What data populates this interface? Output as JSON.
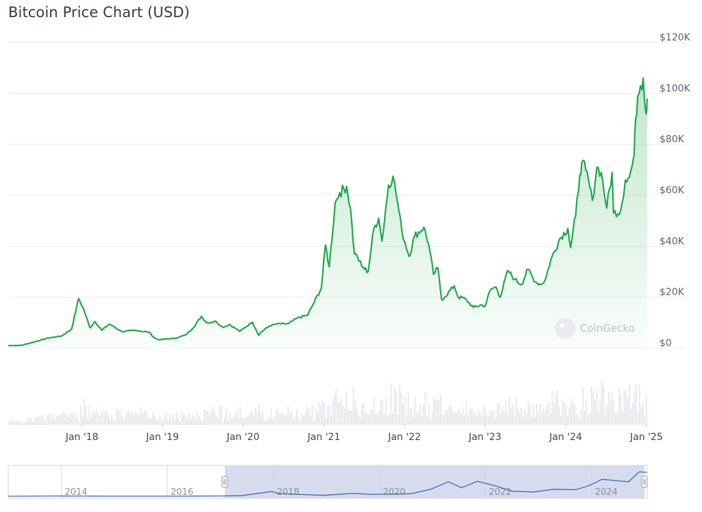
{
  "page": {
    "title": "Bitcoin Price Chart (USD)"
  },
  "watermark": "CoinGecko",
  "colors": {
    "line": "#1ea84b",
    "volume": "#e8eaee",
    "navigator_line": "#3e66b3",
    "navigator_fill": "#d6dcee"
  },
  "chart_data": {
    "type": "area",
    "title": "Bitcoin Price Chart (USD)",
    "xlabel": "",
    "ylabel": "",
    "ylim": [
      0,
      120000
    ],
    "y_ticks": [
      "$0",
      "$20K",
      "$40K",
      "$60K",
      "$80K",
      "$100K",
      "$120K"
    ],
    "y_tick_values": [
      0,
      20000,
      40000,
      60000,
      80000,
      100000,
      120000
    ],
    "x_ticks": [
      "Jan '18",
      "Jan '19",
      "Jan '20",
      "Jan '21",
      "Jan '22",
      "Jan '23",
      "Jan '24",
      "Jan '25"
    ],
    "x_tick_dates": [
      "2018-01-01",
      "2019-01-01",
      "2020-01-01",
      "2021-01-01",
      "2022-01-01",
      "2023-01-01",
      "2024-01-01",
      "2025-01-01"
    ],
    "xlim": [
      "2017-02-01",
      "2025-01-04"
    ],
    "grid": true,
    "legend": "none",
    "series": [
      {
        "x": [
          "2017-02-01",
          "2017-04-01",
          "2017-06-01",
          "2017-08-01",
          "2017-10-01",
          "2017-11-15",
          "2017-12-17",
          "2018-01-10",
          "2018-02-06",
          "2018-03-01",
          "2018-04-01",
          "2018-05-05",
          "2018-07-01",
          "2018-09-01",
          "2018-11-01",
          "2018-11-25",
          "2018-12-15",
          "2019-01-15",
          "2019-03-01",
          "2019-04-15",
          "2019-05-20",
          "2019-06-26",
          "2019-07-20",
          "2019-09-01",
          "2019-09-30",
          "2019-11-01",
          "2019-12-17",
          "2020-02-12",
          "2020-03-12",
          "2020-03-20",
          "2020-05-01",
          "2020-06-01",
          "2020-07-25",
          "2020-09-01",
          "2020-10-20",
          "2020-11-20",
          "2020-12-20",
          "2021-01-08",
          "2021-01-25",
          "2021-02-21",
          "2021-03-13",
          "2021-04-14",
          "2021-05-01",
          "2021-05-19",
          "2021-06-01",
          "2021-06-22",
          "2021-07-20",
          "2021-08-15",
          "2021-09-06",
          "2021-09-21",
          "2021-10-20",
          "2021-11-10",
          "2021-12-01",
          "2021-12-20",
          "2022-01-22",
          "2022-02-15",
          "2022-03-29",
          "2022-04-20",
          "2022-05-12",
          "2022-06-01",
          "2022-06-18",
          "2022-07-01",
          "2022-08-14",
          "2022-09-01",
          "2022-10-01",
          "2022-11-09",
          "2022-12-15",
          "2023-01-01",
          "2023-01-25",
          "2023-02-20",
          "2023-03-10",
          "2023-04-14",
          "2023-05-15",
          "2023-06-15",
          "2023-07-14",
          "2023-08-17",
          "2023-09-11",
          "2023-10-01",
          "2023-10-25",
          "2023-12-05",
          "2024-01-11",
          "2024-01-23",
          "2024-02-15",
          "2024-03-05",
          "2024-03-14",
          "2024-04-01",
          "2024-05-01",
          "2024-05-21",
          "2024-06-10",
          "2024-07-05",
          "2024-07-29",
          "2024-08-05",
          "2024-09-06",
          "2024-09-27",
          "2024-10-15",
          "2024-10-29",
          "2024-11-06",
          "2024-11-13",
          "2024-11-22",
          "2024-12-05",
          "2024-12-17",
          "2024-12-30",
          "2025-01-04"
        ],
        "values": [
          1000,
          1100,
          2500,
          4000,
          4800,
          7500,
          19500,
          15000,
          8000,
          10500,
          7000,
          9500,
          6500,
          7000,
          6300,
          4000,
          3300,
          3600,
          3900,
          5200,
          8000,
          12500,
          10000,
          10500,
          8200,
          9300,
          6600,
          10300,
          5000,
          6200,
          8800,
          9500,
          9600,
          11800,
          13000,
          18500,
          23500,
          40500,
          32000,
          57000,
          61000,
          63500,
          55000,
          37000,
          36000,
          32000,
          30000,
          47000,
          51000,
          42000,
          64000,
          67500,
          57000,
          46000,
          36000,
          44000,
          47500,
          41000,
          29000,
          31500,
          19000,
          20000,
          24500,
          20000,
          19500,
          16000,
          17000,
          16500,
          23000,
          24000,
          20000,
          30500,
          27000,
          25000,
          31000,
          26000,
          25000,
          27000,
          34500,
          43000,
          47000,
          39500,
          52000,
          68000,
          73000,
          70000,
          58000,
          71000,
          69000,
          55000,
          69000,
          53000,
          54000,
          66000,
          67000,
          72000,
          76000,
          90000,
          99000,
          103000,
          106000,
          92000,
          98000
        ]
      }
    ],
    "navigator": {
      "x_labels": [
        "2014",
        "2016",
        "2018",
        "2020",
        "2022",
        "2024"
      ],
      "label_years": [
        2014,
        2016,
        2018,
        2020,
        2022,
        2024
      ],
      "xlim_years": [
        2013.0,
        2025.05
      ],
      "selected_range": [
        "2017-02-01",
        "2025-01-04"
      ],
      "x_years": [
        2013.0,
        2013.3,
        2013.9,
        2014.0,
        2014.6,
        2015.0,
        2015.5,
        2016.0,
        2016.5,
        2017.0,
        2017.4,
        2017.97,
        2018.1,
        2018.6,
        2018.95,
        2019.5,
        2019.9,
        2020.2,
        2020.6,
        2020.98,
        2021.3,
        2021.55,
        2021.85,
        2022.2,
        2022.5,
        2022.9,
        2023.3,
        2023.7,
        2023.95,
        2024.2,
        2024.5,
        2024.7,
        2024.9,
        2025.05
      ],
      "values": [
        100,
        200,
        1000,
        800,
        600,
        300,
        250,
        400,
        650,
        1000,
        2200,
        19000,
        11000,
        6500,
        3700,
        11500,
        7200,
        8500,
        10000,
        29000,
        58000,
        34000,
        60000,
        41000,
        20000,
        17000,
        28000,
        26000,
        42000,
        68000,
        62000,
        58000,
        98000,
        96000
      ]
    }
  }
}
